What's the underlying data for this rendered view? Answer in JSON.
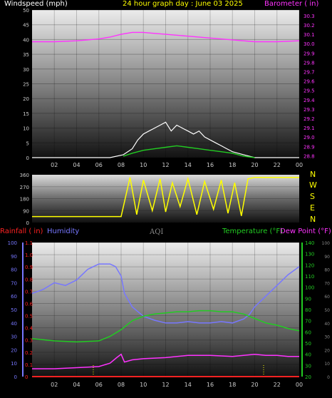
{
  "colors": {
    "wind": "#ffffff",
    "gust_avg": "#22cc22",
    "baro": "#ff33ff",
    "dir": "#ffff00",
    "humidity": "#7777ff",
    "temperature": "#22cc22",
    "dewpoint": "#ff33ff",
    "rainfall": "#ff2222",
    "aqi": "#888888",
    "tick": "#cccccc"
  },
  "header": {
    "windspeed": "Windspeed (mph)",
    "title": "24 hour graph day : June 03 2025",
    "barometer": "Barometer ( in)"
  },
  "compass": [
    "N",
    "W",
    "S",
    "E",
    "N"
  ],
  "legend": {
    "rainfall": "Rainfall ( in)",
    "humidity": "Humidity",
    "aqi": "AQI",
    "temperature": "Temperature (°F)",
    "dewpoint": "Dew Point (°F)"
  },
  "chart_data": [
    {
      "type": "line",
      "name": "wind-baro",
      "x_ticks": [
        "02",
        "04",
        "06",
        "08",
        "10",
        "12",
        "14",
        "16",
        "18",
        "20",
        "22",
        "00"
      ],
      "x_range": [
        0,
        24
      ],
      "y_left_ticks": [
        0,
        5,
        10,
        15,
        20,
        25,
        30,
        35,
        40,
        45,
        50
      ],
      "y_left_range": [
        0,
        50
      ],
      "y_right_ticks": [
        28.8,
        28.9,
        29.0,
        29.1,
        29.2,
        29.3,
        29.4,
        29.5,
        29.6,
        29.7,
        29.8,
        29.9,
        30.0,
        30.1,
        30.2,
        30.3
      ],
      "y_right_range": [
        28.78,
        30.36
      ],
      "series": [
        {
          "key": "baro",
          "axis": "right",
          "x": [
            0,
            2,
            4,
            6,
            7,
            8,
            9,
            10,
            11,
            12,
            14,
            16,
            18,
            20,
            22,
            24
          ],
          "values": [
            30.02,
            30.02,
            30.03,
            30.05,
            30.07,
            30.1,
            30.12,
            30.12,
            30.11,
            30.1,
            30.08,
            30.06,
            30.04,
            30.02,
            30.02,
            30.03
          ]
        },
        {
          "key": "wind",
          "axis": "left",
          "x": [
            0,
            1,
            2,
            3,
            4,
            5,
            6,
            7,
            8.2,
            9,
            9.5,
            10,
            10.5,
            11,
            11.5,
            12,
            12.5,
            13,
            13.5,
            14,
            14.5,
            15,
            15.5,
            16,
            16.5,
            17,
            17.5,
            18,
            18.5,
            19,
            19.5,
            20,
            21,
            22,
            23,
            24
          ],
          "values": [
            0,
            0,
            0,
            0,
            0,
            0,
            0,
            0,
            1,
            3,
            6,
            8,
            9,
            10,
            11,
            12,
            9,
            11,
            10,
            9,
            8,
            9,
            7,
            6,
            5,
            4,
            3,
            2,
            1.5,
            1,
            0.5,
            0,
            0,
            0,
            0,
            0
          ]
        },
        {
          "key": "gust_avg",
          "axis": "left",
          "x": [
            8.2,
            9,
            10,
            11,
            12,
            13,
            14,
            15,
            16,
            17,
            18,
            19,
            20
          ],
          "values": [
            0.5,
            1.5,
            2.5,
            3,
            3.5,
            4,
            3.5,
            3,
            2.5,
            2,
            1.5,
            0.5,
            0
          ]
        }
      ]
    },
    {
      "type": "line",
      "name": "wind-direction",
      "x_range": [
        0,
        24
      ],
      "y_ticks": [
        0,
        90,
        180,
        270,
        360
      ],
      "y_range": [
        0,
        360
      ],
      "series": [
        {
          "key": "dir",
          "x": [
            0,
            4,
            8,
            8.8,
            9.4,
            10,
            10.8,
            11.5,
            12,
            12.6,
            13.3,
            14,
            14.8,
            15.5,
            16.3,
            17,
            17.6,
            18.2,
            18.8,
            19.4,
            20,
            21,
            22,
            23,
            24
          ],
          "values": [
            45,
            45,
            45,
            340,
            60,
            320,
            90,
            330,
            80,
            300,
            120,
            330,
            60,
            310,
            100,
            320,
            70,
            300,
            50,
            330,
            340,
            340,
            340,
            340,
            340
          ]
        }
      ]
    },
    {
      "type": "line",
      "name": "temp-hum",
      "x_ticks": [
        "02",
        "04",
        "06",
        "08",
        "10",
        "12",
        "14",
        "16",
        "18",
        "20",
        "22",
        "00"
      ],
      "x_range": [
        0,
        24
      ],
      "y_humidity_ticks": [
        0,
        10,
        20,
        30,
        40,
        50,
        60,
        70,
        80,
        90,
        100
      ],
      "y_humidity_range": [
        0,
        100
      ],
      "y_rain_ticks": [
        0,
        0.1,
        0.2,
        0.3,
        0.4,
        0.5,
        0.6,
        0.7,
        0.8,
        0.9,
        1.0,
        1.1
      ],
      "y_rain_range": [
        0,
        1.1
      ],
      "y_temp_ticks": [
        20,
        30,
        40,
        50,
        60,
        70,
        80,
        90,
        100,
        110,
        120,
        130,
        140
      ],
      "y_temp_range": [
        20,
        140
      ],
      "y_aqi_ticks": [
        0,
        10,
        20,
        30,
        40,
        50,
        60,
        70,
        80,
        90,
        100
      ],
      "y_aqi_range": [
        0,
        100
      ],
      "series": [
        {
          "key": "humidity",
          "axis": "humidity",
          "x": [
            0,
            1,
            2,
            3,
            4,
            5,
            6,
            7,
            7.5,
            8,
            8.3,
            9,
            10,
            11,
            12,
            13,
            14,
            15,
            16,
            17,
            18,
            19,
            19.5,
            20,
            21,
            22,
            23,
            24
          ],
          "values": [
            62,
            65,
            70,
            68,
            72,
            80,
            84,
            84,
            82,
            75,
            62,
            52,
            45,
            42,
            40,
            40,
            41,
            40,
            40,
            41,
            40,
            43,
            46,
            52,
            60,
            68,
            76,
            82
          ]
        },
        {
          "key": "temperature",
          "axis": "temp",
          "x": [
            0,
            2,
            4,
            6,
            7,
            8,
            9,
            10,
            11,
            12,
            13,
            14,
            15,
            16,
            17,
            18,
            19,
            20,
            21,
            22,
            23,
            24
          ],
          "values": [
            54,
            52,
            51,
            52,
            56,
            62,
            70,
            74,
            76,
            77,
            78,
            78,
            79,
            79,
            78,
            78,
            76,
            72,
            68,
            66,
            63,
            61
          ]
        },
        {
          "key": "dewpoint",
          "axis": "temp",
          "x": [
            0,
            2,
            4,
            6,
            7,
            7.6,
            8,
            8.3,
            9,
            10,
            12,
            14,
            16,
            18,
            19,
            20,
            21,
            22,
            23,
            24
          ],
          "values": [
            27,
            27,
            28,
            29,
            32,
            37,
            40,
            33,
            35,
            36,
            37,
            39,
            39,
            38,
            39,
            40,
            39,
            39,
            38,
            38
          ]
        },
        {
          "key": "rainfall",
          "axis": "rain",
          "x": [
            0,
            24
          ],
          "values": [
            0.0,
            0.0
          ]
        }
      ]
    }
  ]
}
